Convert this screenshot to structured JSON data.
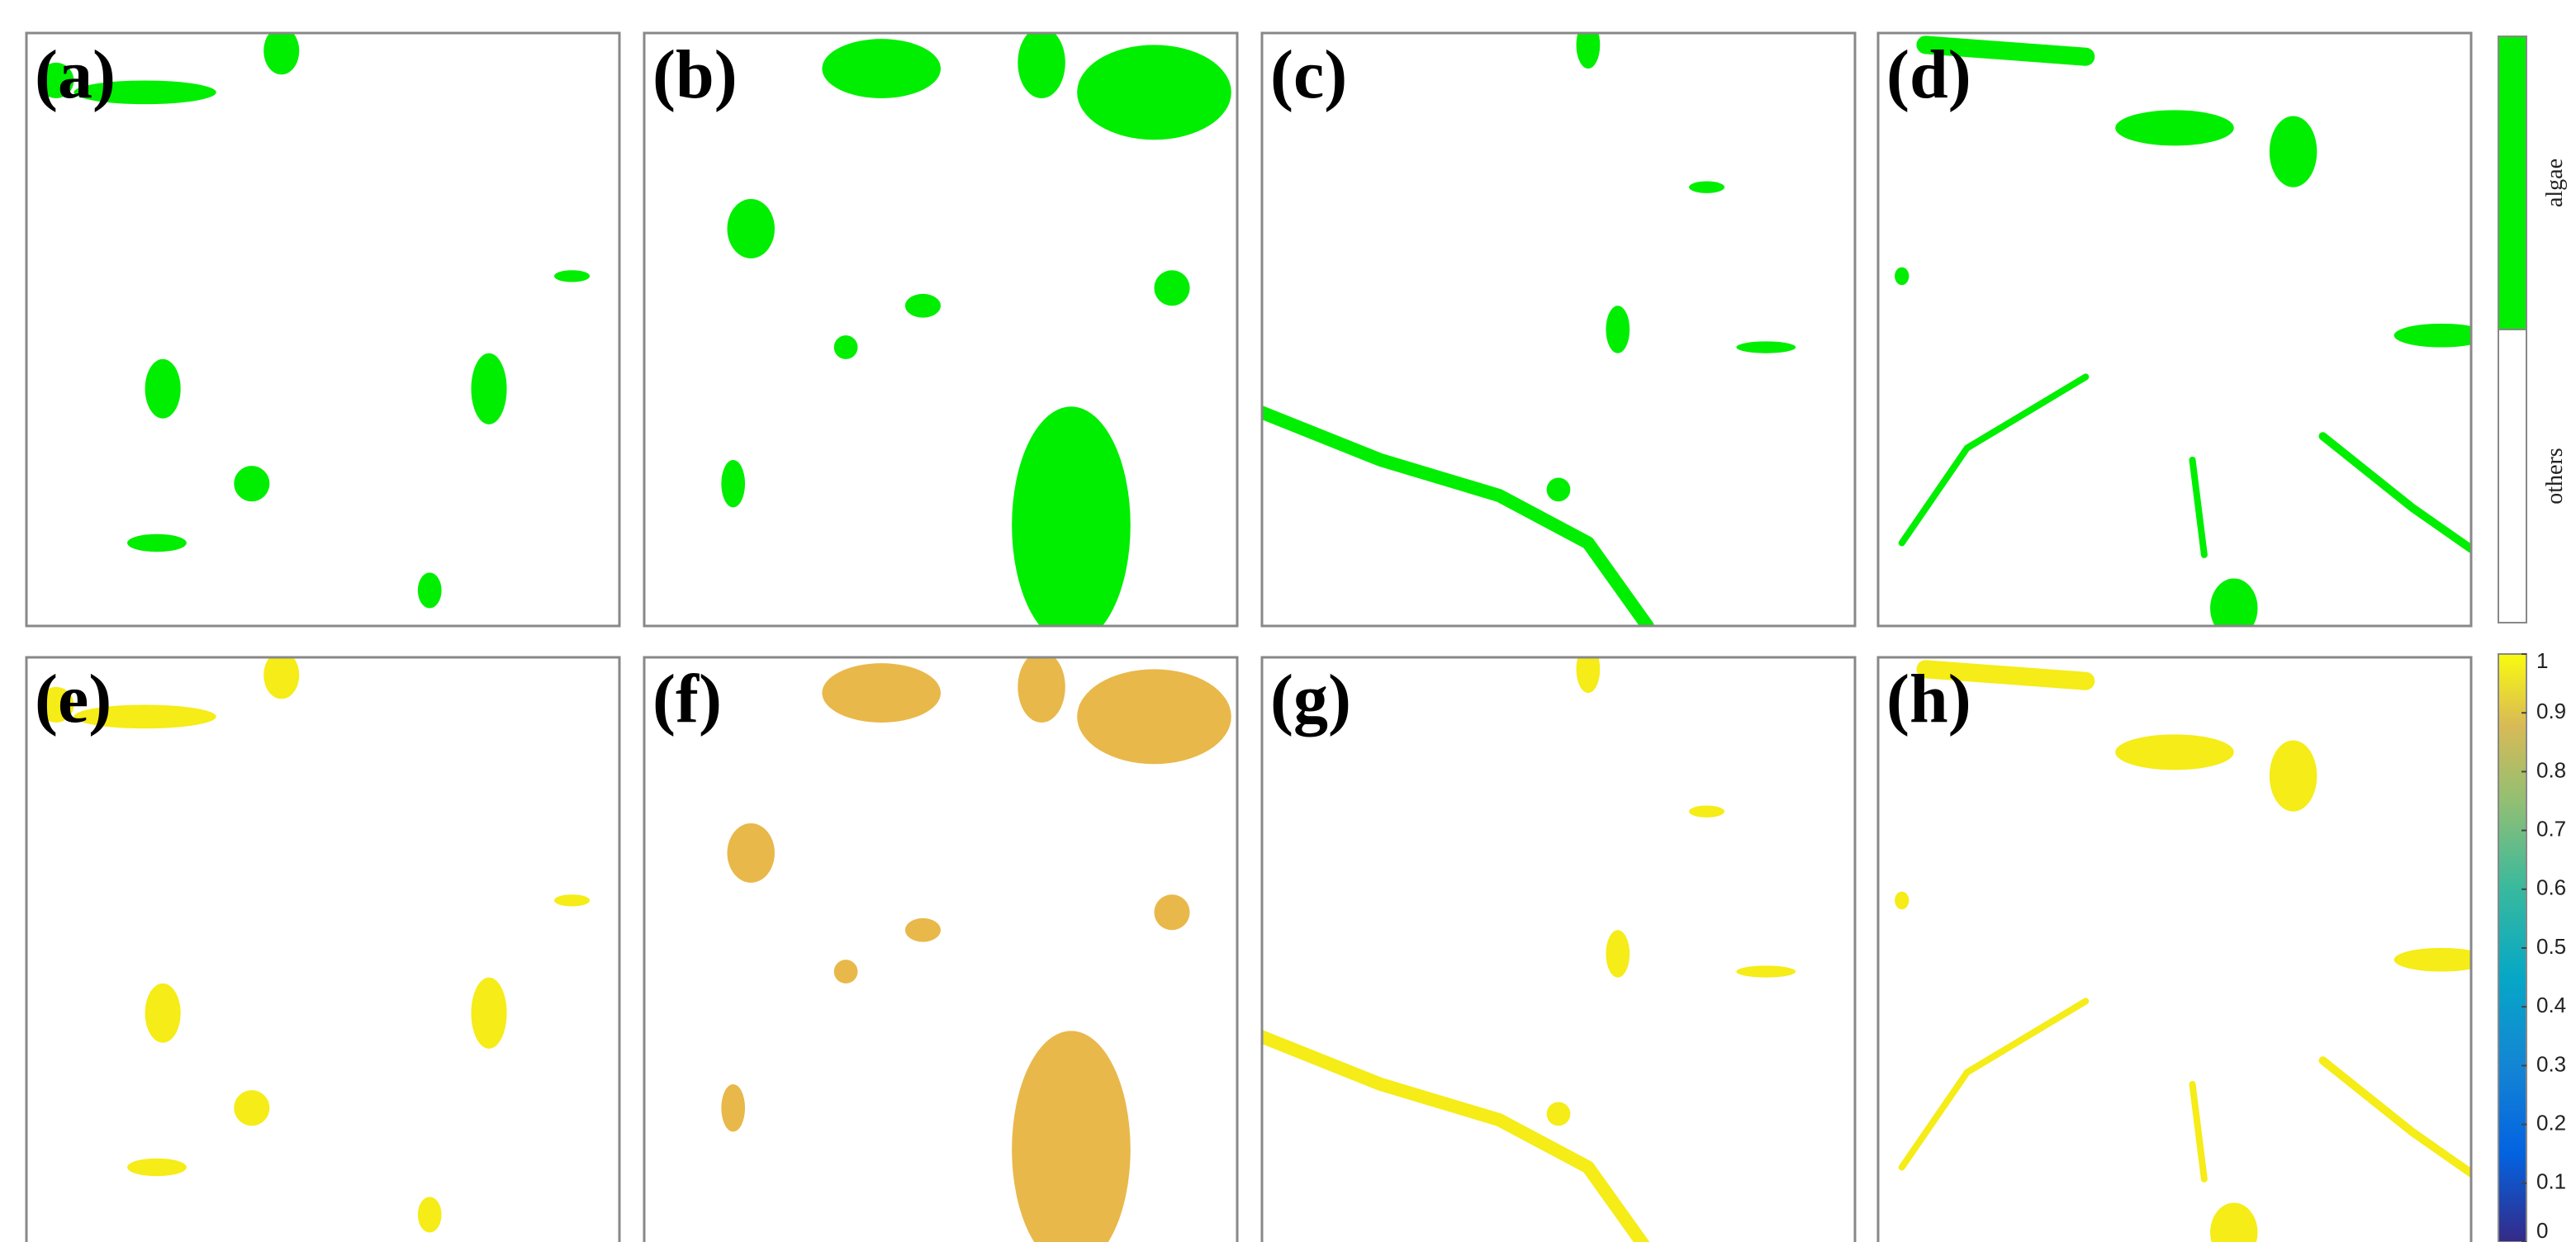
{
  "panels": [
    {
      "label": "(a)"
    },
    {
      "label": "(b)"
    },
    {
      "label": "(c)"
    },
    {
      "label": "(d)"
    },
    {
      "label": "(e)"
    },
    {
      "label": "(f)"
    },
    {
      "label": "(g)"
    },
    {
      "label": "(h)"
    }
  ],
  "class_colorbar": {
    "labels": [
      "algae",
      "others"
    ],
    "colors": [
      "#00ee00",
      "#ffffff"
    ]
  },
  "colorbar": {
    "ylim": [
      0,
      1
    ],
    "ticks": [
      0,
      0.1,
      0.2,
      0.3,
      0.4,
      0.5,
      0.6,
      0.7,
      0.8,
      0.9,
      1
    ]
  }
}
